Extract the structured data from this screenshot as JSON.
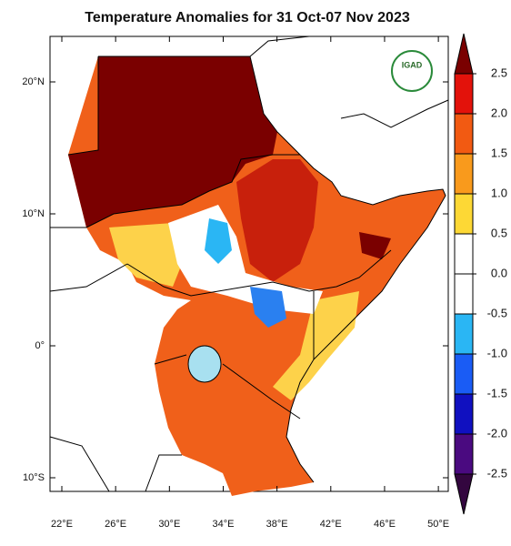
{
  "map": {
    "title": "Temperature Anomalies for 31 Oct-07 Nov 2023",
    "logo": "IGAD",
    "xticks": [
      {
        "value": 22,
        "label": "22°E"
      },
      {
        "value": 26,
        "label": "26°E"
      },
      {
        "value": 30,
        "label": "30°E"
      },
      {
        "value": 34,
        "label": "34°E"
      },
      {
        "value": 38,
        "label": "38°E"
      },
      {
        "value": 42,
        "label": "42°E"
      },
      {
        "value": 46,
        "label": "46°E"
      },
      {
        "value": 50,
        "label": "50°E"
      }
    ],
    "yticks": [
      {
        "value": 20,
        "label": "20°N"
      },
      {
        "value": 10,
        "label": "10°N"
      },
      {
        "value": 0,
        "label": "0°"
      },
      {
        "value": -10,
        "label": "10°S"
      }
    ],
    "colorbar": {
      "levels": [
        {
          "value": 2.5,
          "label": "2.5"
        },
        {
          "value": 2.0,
          "label": "2.0"
        },
        {
          "value": 1.5,
          "label": "1.5"
        },
        {
          "value": 1.0,
          "label": "1.0"
        },
        {
          "value": 0.5,
          "label": "0.5"
        },
        {
          "value": 0.0,
          "label": "0.0"
        },
        {
          "value": -0.5,
          "label": "-0.5"
        },
        {
          "value": -1.0,
          "label": "-1.0"
        },
        {
          "value": -1.5,
          "label": "-1.5"
        },
        {
          "value": -2.0,
          "label": "-2.0"
        },
        {
          "value": -2.5,
          "label": "-2.5"
        }
      ],
      "colors": [
        "#7a0000",
        "#e3120b",
        "#f25a12",
        "#f99a1c",
        "#fdd835",
        "#ffffff",
        "#ffffff",
        "#2ab6f4",
        "#1a5cf5",
        "#1010c0",
        "#4a0a80",
        "#33063f"
      ]
    }
  }
}
